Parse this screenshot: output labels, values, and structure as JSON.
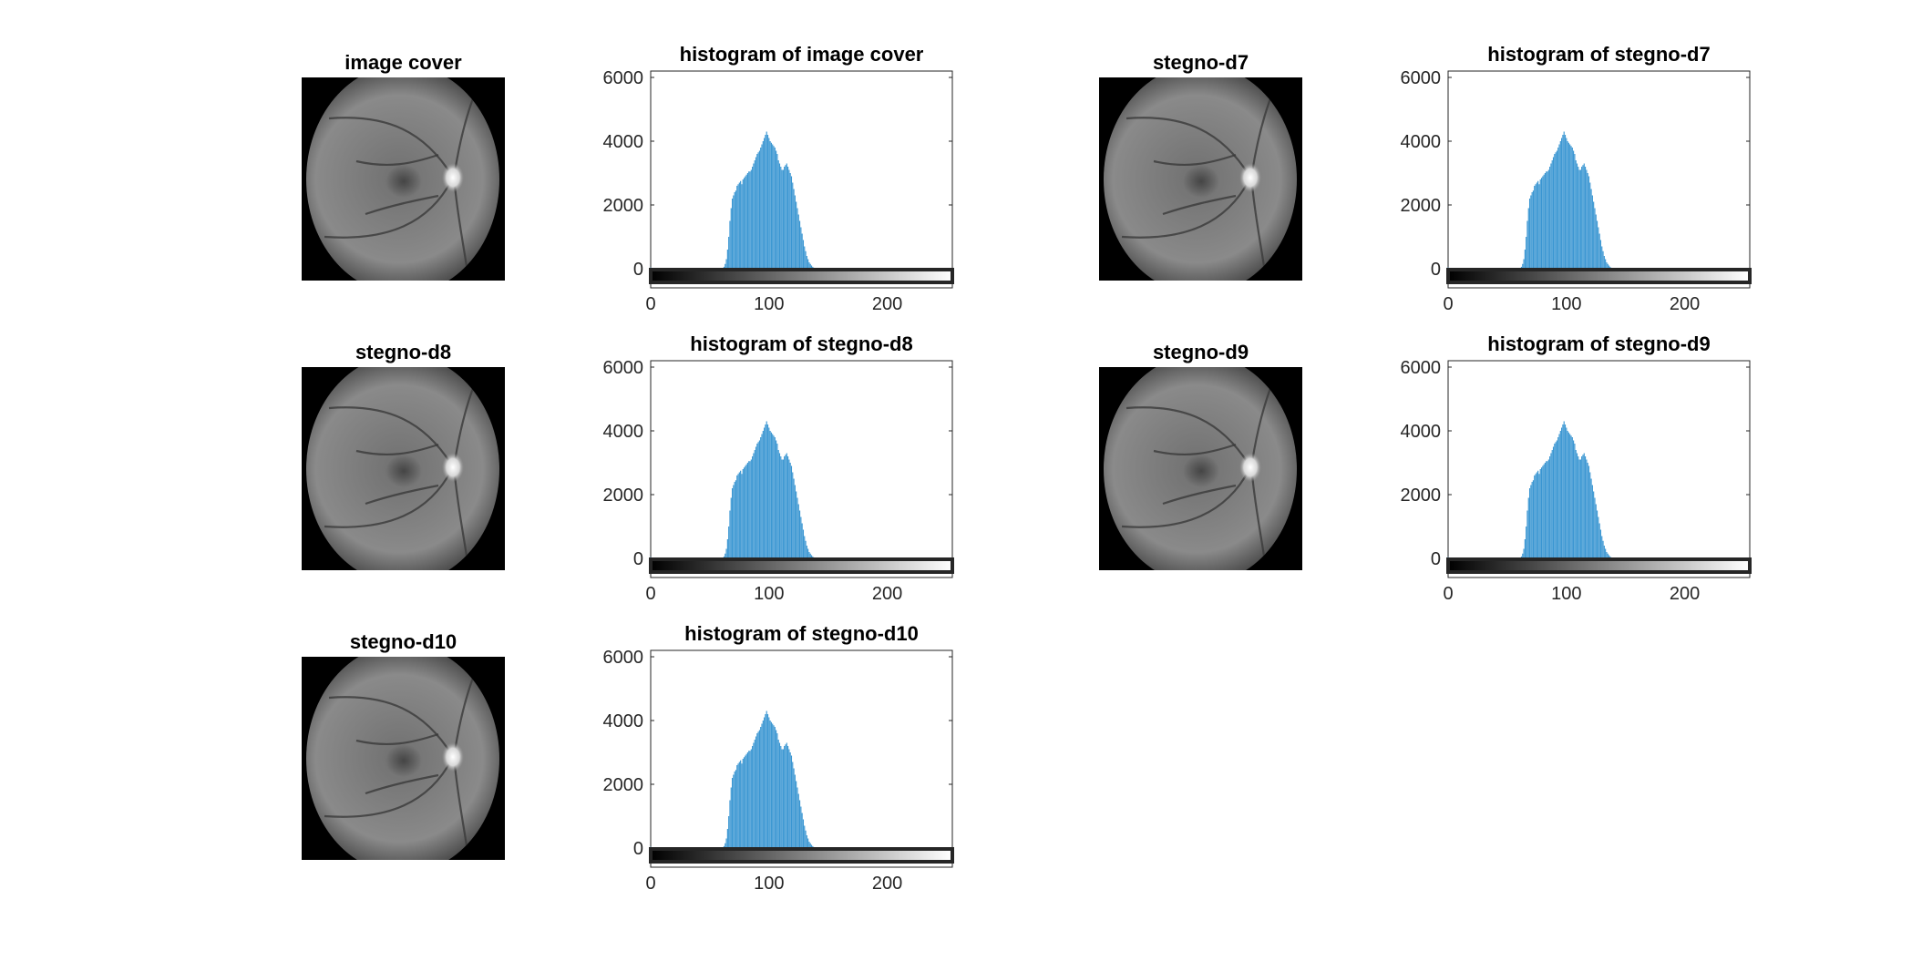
{
  "colors": {
    "bar": "#3a96d2",
    "axis": "#262626",
    "background": "#ffffff"
  },
  "panels": [
    {
      "image_title": "image cover",
      "histogram_title": "histogram of image cover"
    },
    {
      "image_title": "stegno-d7",
      "histogram_title": "histogram of stegno-d7"
    },
    {
      "image_title": "stegno-d8",
      "histogram_title": "histogram of stegno-d8"
    },
    {
      "image_title": "stegno-d9",
      "histogram_title": "histogram of stegno-d9"
    },
    {
      "image_title": "stegno-d10",
      "histogram_title": "histogram of stegno-d10"
    }
  ],
  "chart_data": {
    "type": "bar",
    "xlim": [
      0,
      255
    ],
    "ylim": [
      -600,
      6200
    ],
    "xticks": [
      0,
      100,
      200
    ],
    "yticks": [
      0,
      2000,
      4000,
      6000
    ],
    "colorbar": "grayscale 0-255",
    "grid": false,
    "bins_start": 0,
    "counts": [
      40,
      0,
      0,
      0,
      0,
      0,
      0,
      0,
      0,
      0,
      0,
      0,
      0,
      0,
      0,
      0,
      0,
      0,
      0,
      0,
      0,
      0,
      0,
      0,
      0,
      0,
      0,
      0,
      0,
      0,
      0,
      0,
      0,
      0,
      0,
      0,
      0,
      0,
      0,
      0,
      0,
      0,
      0,
      0,
      0,
      0,
      0,
      0,
      0,
      0,
      0,
      0,
      0,
      0,
      0,
      0,
      0,
      0,
      0,
      0,
      0,
      20,
      60,
      150,
      300,
      600,
      1000,
      1500,
      1900,
      2200,
      2300,
      2400,
      2450,
      2600,
      2650,
      2700,
      2750,
      2650,
      2800,
      2850,
      2900,
      2950,
      3000,
      3050,
      3050,
      3100,
      3200,
      3300,
      3400,
      3500,
      3600,
      3650,
      3700,
      3800,
      3900,
      4000,
      4100,
      4200,
      4300,
      4200,
      4100,
      4000,
      3950,
      3900,
      3850,
      3800,
      3700,
      3600,
      3400,
      3300,
      3200,
      3100,
      3100,
      3200,
      3250,
      3300,
      3200,
      3100,
      3000,
      2900,
      2700,
      2500,
      2300,
      2100,
      1900,
      1700,
      1500,
      1300,
      1100,
      900,
      700,
      550,
      400,
      300,
      200,
      150,
      100,
      60,
      30,
      10,
      5
    ]
  }
}
